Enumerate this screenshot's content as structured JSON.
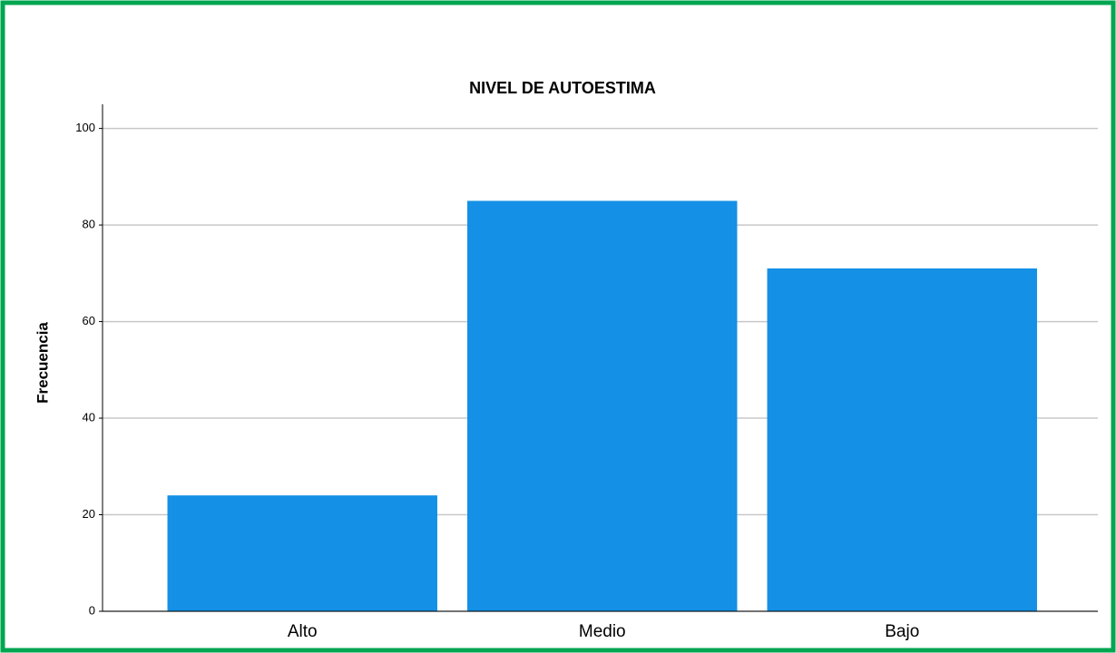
{
  "chart_data": {
    "type": "bar",
    "title": "NIVEL DE AUTOESTIMA",
    "y_label": "Frecuencia",
    "categories": [
      "Alto",
      "Medio",
      "Bajo"
    ],
    "values": [
      24,
      85,
      71
    ],
    "color": "#1490e6",
    "ylim": [
      0,
      105
    ],
    "yticks": [
      0,
      20,
      40,
      60,
      80,
      100
    ],
    "grid": true
  }
}
